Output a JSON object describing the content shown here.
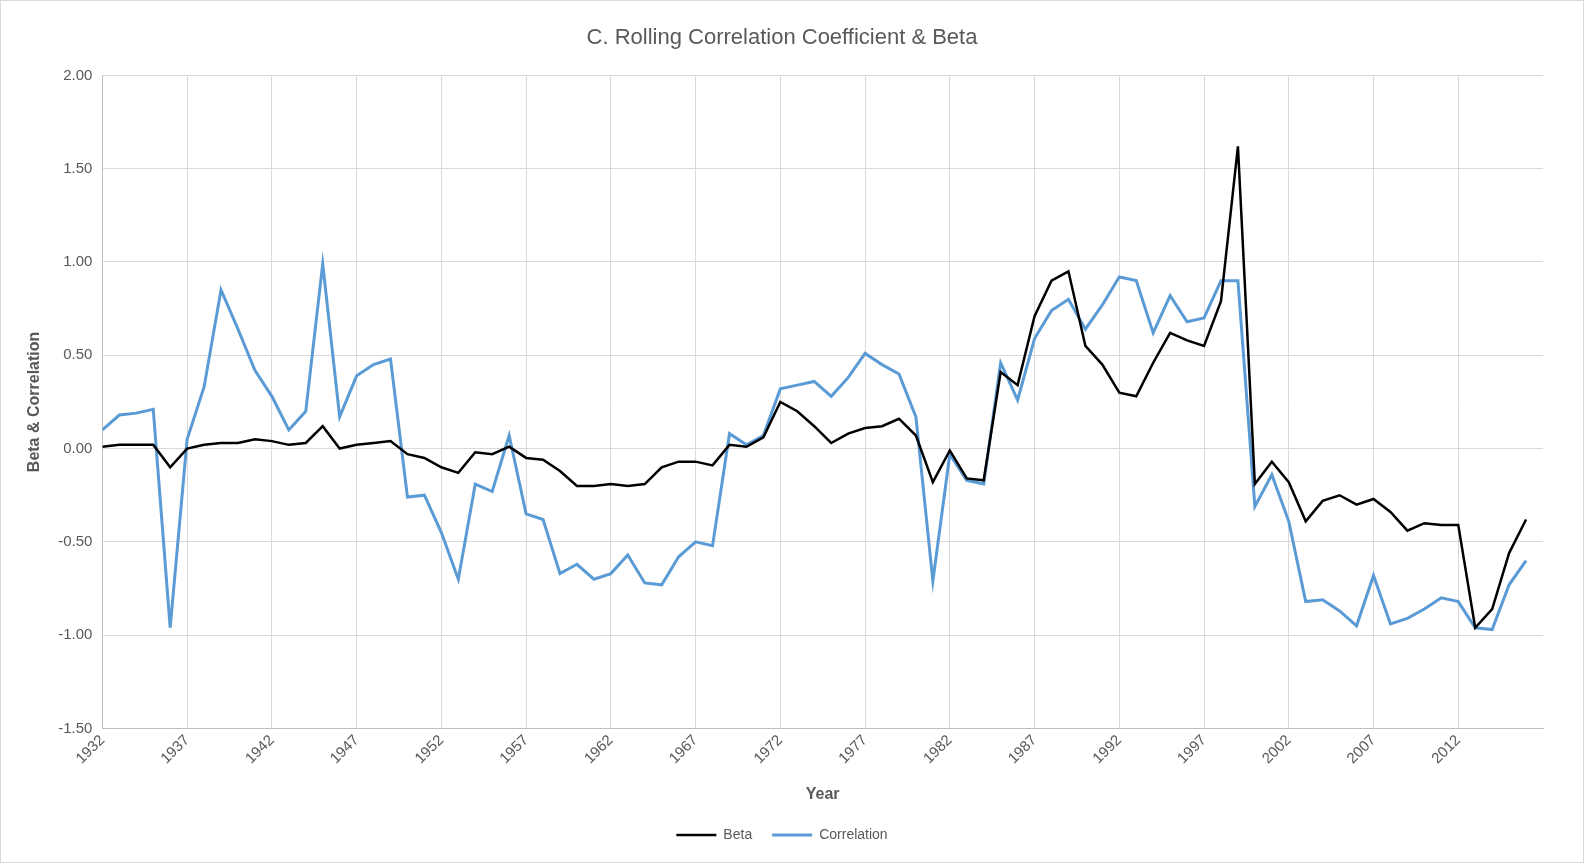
{
  "chart_data": {
    "type": "line",
    "title": "C. Rolling Correlation Coefficient & Beta",
    "x_label": "Year",
    "y_label": "Beta & Correlation",
    "x": [
      1932,
      1933,
      1934,
      1935,
      1936,
      1937,
      1938,
      1939,
      1940,
      1941,
      1942,
      1943,
      1944,
      1945,
      1946,
      1947,
      1948,
      1949,
      1950,
      1951,
      1952,
      1953,
      1954,
      1955,
      1956,
      1957,
      1958,
      1959,
      1960,
      1961,
      1962,
      1963,
      1964,
      1965,
      1966,
      1967,
      1968,
      1969,
      1970,
      1971,
      1972,
      1973,
      1974,
      1975,
      1976,
      1977,
      1978,
      1979,
      1980,
      1981,
      1982,
      1983,
      1984,
      1985,
      1986,
      1987,
      1988,
      1989,
      1990,
      1991,
      1992,
      1993,
      1994,
      1995,
      1996,
      1997,
      1998,
      1999,
      2000,
      2001,
      2002,
      2003,
      2004,
      2005,
      2006,
      2007,
      2008,
      2009,
      2010,
      2011,
      2012,
      2013,
      2014,
      2015,
      2016
    ],
    "series": [
      {
        "name": "Correlation",
        "color": "#5b9bd5",
        "values": [
          0.1,
          0.18,
          0.19,
          0.21,
          -0.96,
          0.05,
          0.33,
          0.85,
          0.64,
          0.42,
          0.28,
          0.1,
          0.2,
          0.99,
          0.17,
          0.39,
          0.45,
          0.48,
          -0.26,
          -0.25,
          -0.45,
          -0.7,
          -0.19,
          -0.23,
          0.07,
          -0.35,
          -0.38,
          -0.67,
          -0.62,
          -0.7,
          -0.67,
          -0.57,
          -0.72,
          -0.73,
          -0.58,
          -0.5,
          -0.52,
          0.08,
          0.02,
          0.07,
          0.32,
          0.34,
          0.36,
          0.28,
          0.38,
          0.51,
          0.45,
          0.4,
          0.17,
          -0.71,
          -0.03,
          -0.17,
          -0.19,
          0.46,
          0.26,
          0.59,
          0.74,
          0.8,
          0.64,
          0.77,
          0.92,
          0.9,
          0.62,
          0.82,
          0.68,
          0.7,
          0.9,
          0.9,
          -0.31,
          -0.14,
          -0.39,
          -0.82,
          -0.81,
          -0.87,
          -0.95,
          -0.68,
          -0.94,
          -0.91,
          -0.86,
          -0.8,
          -0.82,
          -0.96,
          -0.97,
          -0.73,
          -0.6
        ]
      },
      {
        "name": "Beta",
        "color": "#000000",
        "values": [
          0.01,
          0.02,
          0.02,
          0.02,
          -0.1,
          0.0,
          0.02,
          0.03,
          0.03,
          0.05,
          0.04,
          0.02,
          0.03,
          0.12,
          0.0,
          0.02,
          0.03,
          0.04,
          -0.03,
          -0.05,
          -0.1,
          -0.13,
          -0.02,
          -0.03,
          0.01,
          -0.05,
          -0.06,
          -0.12,
          -0.2,
          -0.2,
          -0.19,
          -0.2,
          -0.19,
          -0.1,
          -0.07,
          -0.07,
          -0.09,
          0.02,
          0.01,
          0.06,
          0.25,
          0.2,
          0.12,
          0.03,
          0.08,
          0.11,
          0.12,
          0.16,
          0.07,
          -0.18,
          -0.01,
          -0.16,
          -0.17,
          0.41,
          0.34,
          0.71,
          0.9,
          0.95,
          0.55,
          0.45,
          0.3,
          0.28,
          0.46,
          0.62,
          0.58,
          0.55,
          0.79,
          1.62,
          -0.19,
          -0.07,
          -0.18,
          -0.39,
          -0.28,
          -0.25,
          -0.3,
          -0.27,
          -0.34,
          -0.44,
          -0.4,
          -0.41,
          -0.41,
          -0.96,
          -0.86,
          -0.56,
          -0.38
        ]
      }
    ],
    "xlim": [
      1932,
      2017
    ],
    "xticks": [
      1932,
      1937,
      1942,
      1947,
      1952,
      1957,
      1962,
      1967,
      1972,
      1977,
      1982,
      1987,
      1992,
      1997,
      2002,
      2007,
      2012
    ],
    "ylim": [
      -1.5,
      2.0
    ],
    "yticks": [
      {
        "value": -1.5,
        "label": "-1.50"
      },
      {
        "value": -1.0,
        "label": "-1.00"
      },
      {
        "value": -0.5,
        "label": "-0.50"
      },
      {
        "value": 0,
        "label": "0.00"
      },
      {
        "value": 0.5,
        "label": "0.50"
      },
      {
        "value": 1.0,
        "label": "1.00"
      },
      {
        "value": 1.5,
        "label": "1.50"
      },
      {
        "value": 2.0,
        "label": "2.00"
      }
    ],
    "grid": true,
    "legend": "bottom"
  }
}
